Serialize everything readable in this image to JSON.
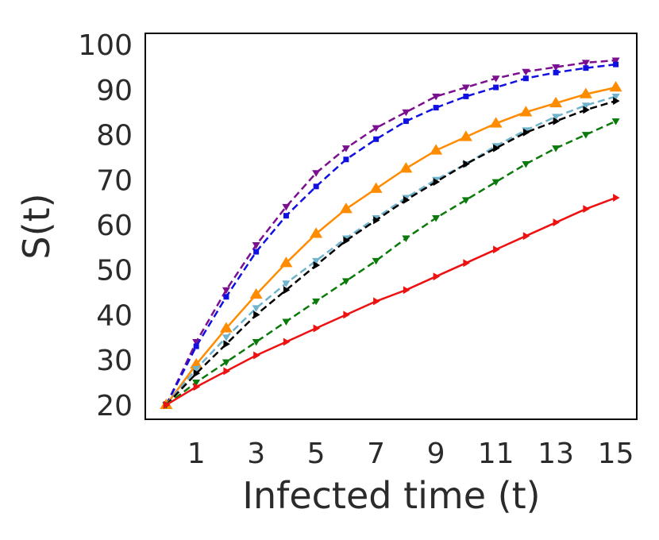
{
  "chart_data": {
    "type": "line",
    "title": "",
    "xlabel": "Infected time (t)",
    "ylabel": "S(t)",
    "xlim": [
      -0.7,
      15.7
    ],
    "ylim": [
      16.8,
      102.5
    ],
    "xticks": [
      1,
      3,
      5,
      7,
      9,
      11,
      13,
      15
    ],
    "yticks": [
      20,
      30,
      40,
      50,
      60,
      70,
      80,
      90,
      100
    ],
    "grid": false,
    "legend": "none",
    "x": [
      0,
      1,
      2,
      3,
      4,
      5,
      6,
      7,
      8,
      9,
      10,
      11,
      12,
      13,
      14,
      15
    ],
    "series": [
      {
        "name": "purple",
        "color": "#7b0f8f",
        "dashed": true,
        "marker": "tri-down",
        "values": [
          20,
          34,
          45.5,
          55.5,
          64,
          71.5,
          77,
          81.5,
          85,
          88.5,
          90.5,
          92.5,
          94,
          95,
          96,
          96.5
        ]
      },
      {
        "name": "blue",
        "color": "#1010e0",
        "dashed": true,
        "marker": "square",
        "values": [
          20,
          33,
          44,
          54,
          62,
          68.5,
          74.5,
          79,
          83,
          86,
          88.5,
          90.5,
          92.5,
          93.8,
          94.8,
          95.6
        ]
      },
      {
        "name": "orange",
        "color": "#ff8c00",
        "dashed": false,
        "marker": "tri-up",
        "values": [
          20,
          29,
          37,
          44.5,
          51.5,
          58,
          63.5,
          68,
          72.5,
          76.5,
          79.5,
          82.5,
          85,
          87,
          89,
          90.5
        ]
      },
      {
        "name": "lightblue",
        "color": "#6fb3cc",
        "dashed": true,
        "marker": "tri-down",
        "values": [
          20,
          28,
          35,
          41.5,
          47,
          52,
          57,
          61.5,
          66,
          70,
          73.5,
          77.5,
          81,
          84,
          86.5,
          88.5
        ]
      },
      {
        "name": "black",
        "color": "#000000",
        "dashed": true,
        "marker": "tri-right",
        "values": [
          20,
          27,
          33.5,
          40,
          45.5,
          51,
          56.5,
          61,
          65.5,
          69.5,
          73.5,
          77,
          80.5,
          83,
          85.5,
          87.5
        ]
      },
      {
        "name": "green",
        "color": "#0a7a0a",
        "dashed": true,
        "marker": "tri-down",
        "values": [
          20,
          25,
          29.5,
          34,
          38.5,
          43,
          47.5,
          52,
          57,
          61.5,
          65.5,
          69.5,
          73.5,
          77,
          80,
          83
        ]
      },
      {
        "name": "red",
        "color": "#ee1111",
        "dashed": false,
        "marker": "tri-right",
        "values": [
          20,
          24,
          27.5,
          31,
          34,
          37,
          40,
          43,
          45.5,
          48.5,
          51.5,
          54.5,
          57.5,
          60.5,
          63.5,
          66
        ]
      }
    ]
  }
}
